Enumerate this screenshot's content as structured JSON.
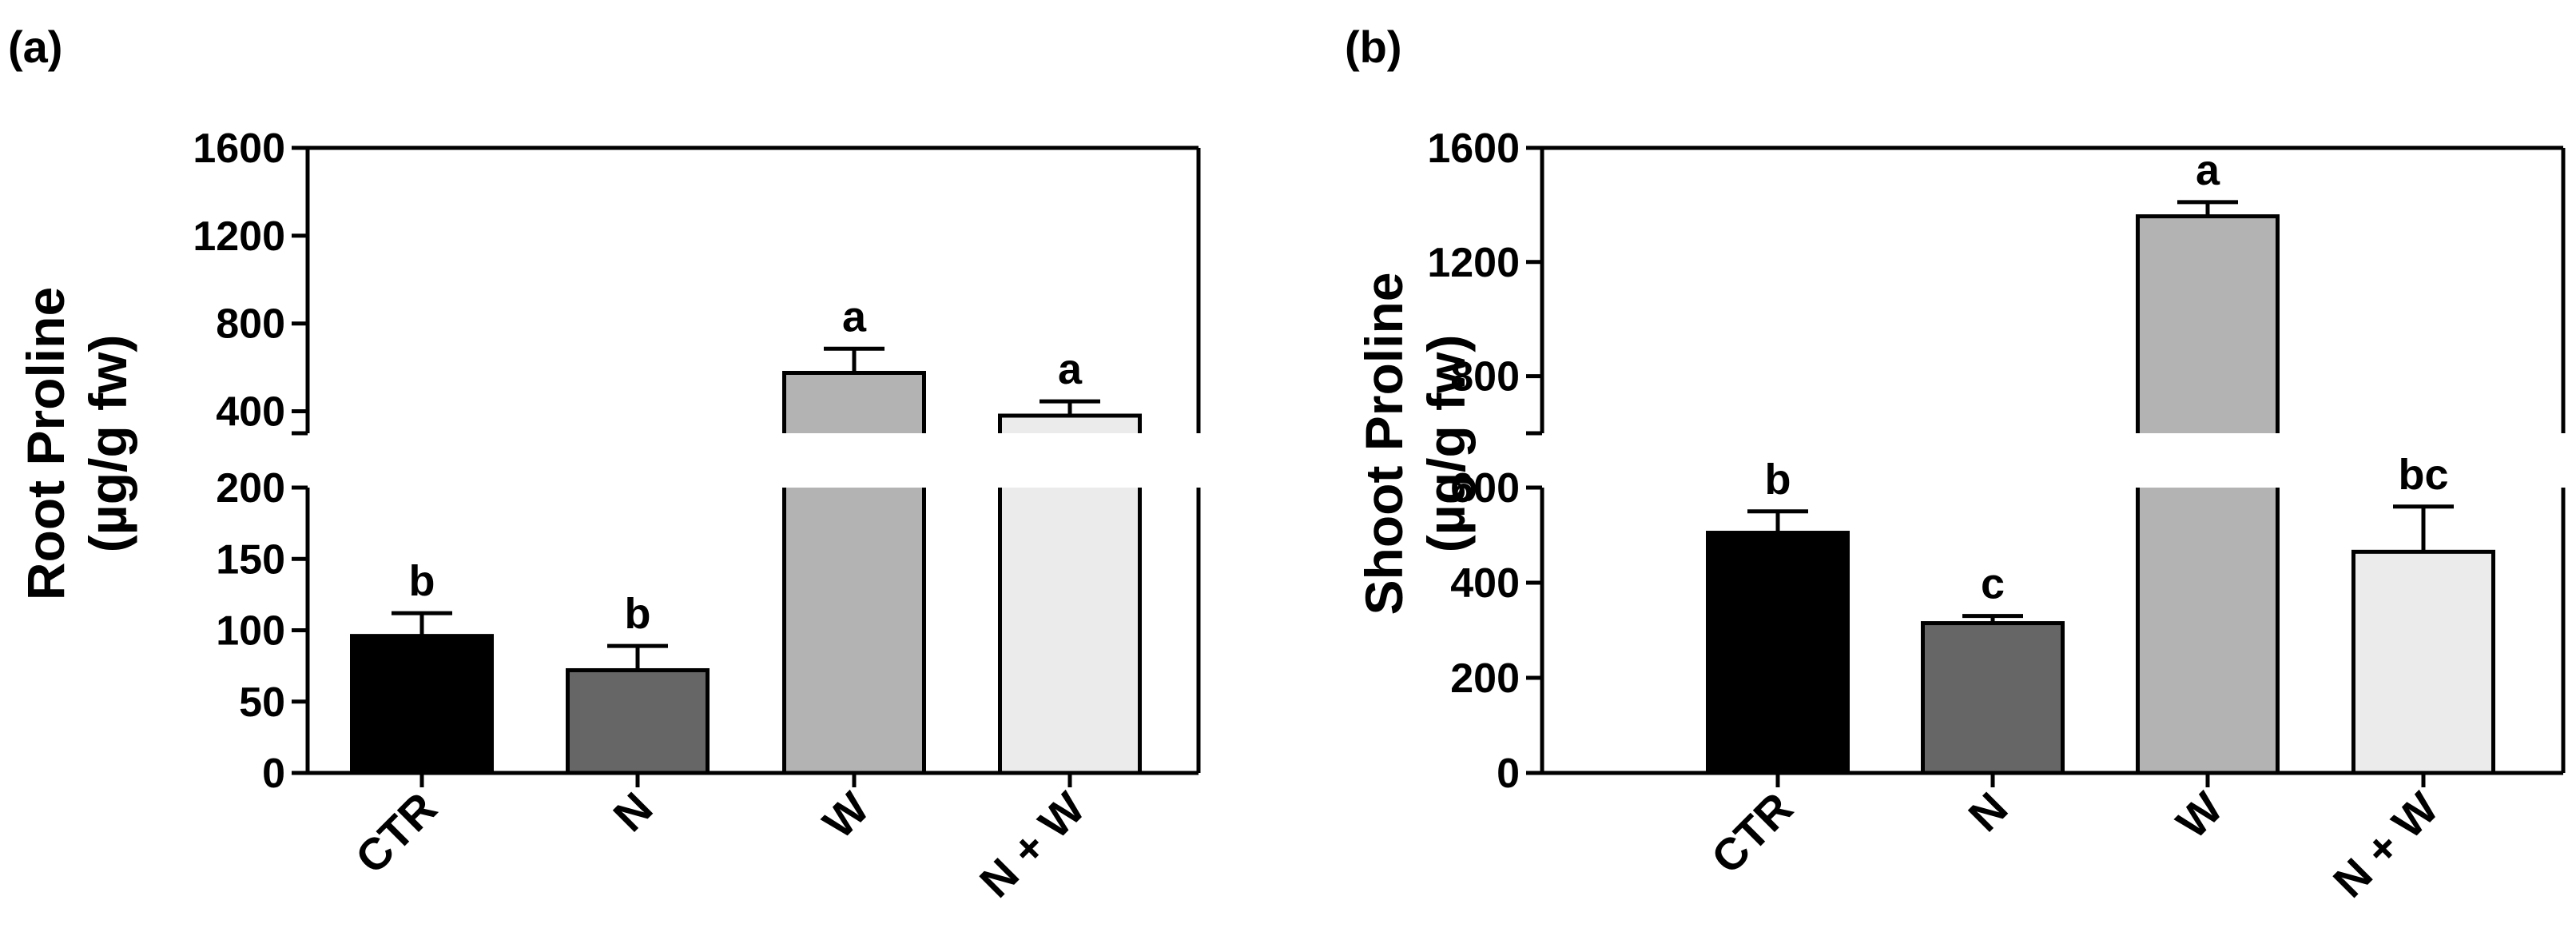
{
  "chart_data": [
    {
      "type": "bar",
      "panel_label": "(a)",
      "ylabel_line1": "Root Proline",
      "ylabel_line2": "(µg/g fw)",
      "categories": [
        "CTR",
        "N",
        "W",
        "N + W"
      ],
      "values": [
        96,
        72,
        575,
        380
      ],
      "errors": [
        16,
        17,
        110,
        65
      ],
      "letters": [
        "b",
        "b",
        "a",
        "a"
      ],
      "colors": [
        "#000000",
        "#666666",
        "#b3b3b3",
        "#ebebeb"
      ],
      "axis_break": true,
      "lower_ylim": [
        0,
        200
      ],
      "lower_ticks": [
        0,
        50,
        100,
        150,
        200
      ],
      "upper_ylim": [
        300,
        1600
      ],
      "upper_ticks": [
        400,
        800,
        1200,
        1600
      ]
    },
    {
      "type": "bar",
      "panel_label": "(b)",
      "ylabel_line1": "Shoot Proline",
      "ylabel_line2": "(µg/g fw)",
      "categories": [
        "CTR",
        "N",
        "W",
        "N + W"
      ],
      "values": [
        505,
        315,
        1360,
        465
      ],
      "errors": [
        45,
        15,
        50,
        95
      ],
      "letters": [
        "b",
        "c",
        "a",
        "bc"
      ],
      "colors": [
        "#000000",
        "#666666",
        "#b3b3b3",
        "#ebebeb"
      ],
      "axis_break": true,
      "lower_ylim": [
        0,
        600
      ],
      "lower_ticks": [
        0,
        200,
        400,
        600
      ],
      "upper_ylim": [
        600,
        1600
      ],
      "upper_ticks": [
        800,
        1200,
        1600
      ]
    }
  ]
}
